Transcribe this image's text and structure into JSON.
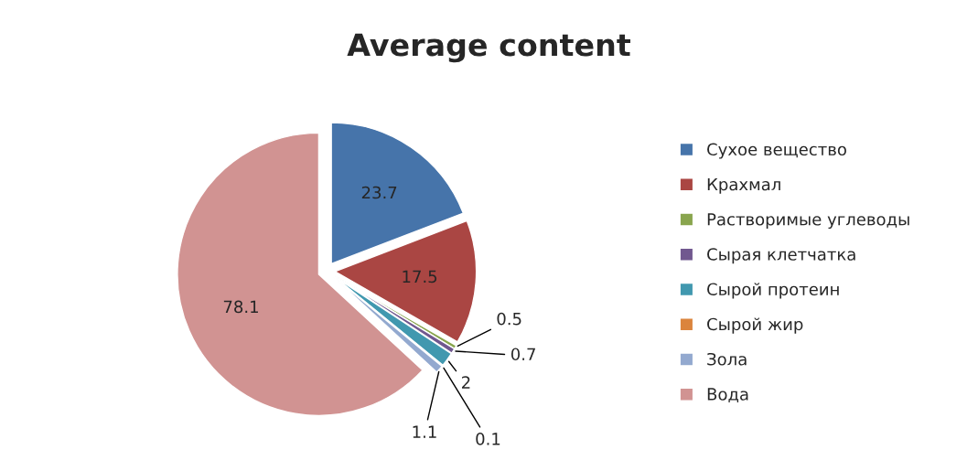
{
  "chart_data": {
    "type": "pie",
    "title": "Average content",
    "categories": [
      "Сухое вещество",
      "Крахмал",
      "Растворимые углеводы",
      "Сырая клетчатка",
      "Сырой протеин",
      "Сырой жир",
      "Зола",
      "Вода"
    ],
    "values": [
      23.7,
      17.5,
      0.5,
      0.7,
      2,
      0.1,
      1.1,
      78.1
    ],
    "colors": [
      "#4674aa",
      "#aa4643",
      "#89a54e",
      "#71588f",
      "#4198af",
      "#db843d",
      "#93a9cf",
      "#d19392"
    ],
    "data_labels": true,
    "legend": "right"
  }
}
